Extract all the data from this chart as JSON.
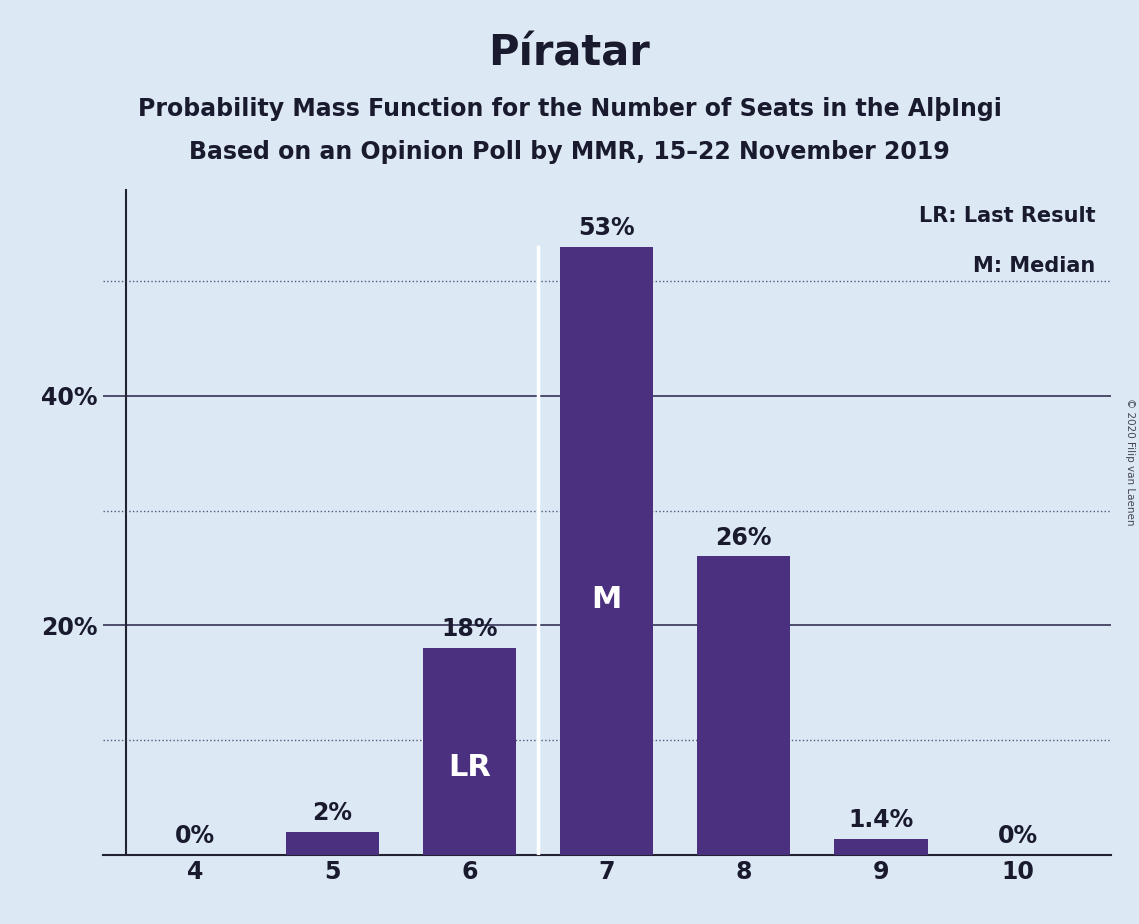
{
  "title": "Píratar",
  "subtitle1": "Probability Mass Function for the Number of Seats in the AlþIngi",
  "subtitle2": "Based on an Opinion Poll by MMR, 15–22 November 2019",
  "copyright": "© 2020 Filip van Laenen",
  "categories": [
    4,
    5,
    6,
    7,
    8,
    9,
    10
  ],
  "values": [
    0.0,
    2.0,
    18.0,
    53.0,
    26.0,
    1.4,
    0.0
  ],
  "bar_color": "#4b3080",
  "background_color": "#dce9f5",
  "bar_labels": [
    "0%",
    "2%",
    "18%",
    "53%",
    "26%",
    "1.4%",
    "0%"
  ],
  "bar_label_dark_color": "#1a1a2e",
  "bar_label_white_color": "#ffffff",
  "inside_labels": {
    "6": "LR",
    "7": "M"
  },
  "lr_seat": 6,
  "median_seat": 7,
  "legend_lr": "LR: Last Result",
  "legend_m": "M: Median",
  "yticks_solid": [
    20,
    40
  ],
  "yticks_dotted": [
    10,
    30,
    50
  ],
  "ytick_labels": {
    "20": "20%",
    "40": "40%"
  },
  "ylim": [
    0,
    58
  ],
  "grid_solid_color": "#333355",
  "grid_dotted_color": "#555577",
  "title_fontsize": 30,
  "subtitle_fontsize": 17,
  "axis_fontsize": 17,
  "bar_label_fontsize": 17,
  "inside_label_fontsize": 22,
  "legend_fontsize": 15,
  "copyright_fontsize": 7.5
}
